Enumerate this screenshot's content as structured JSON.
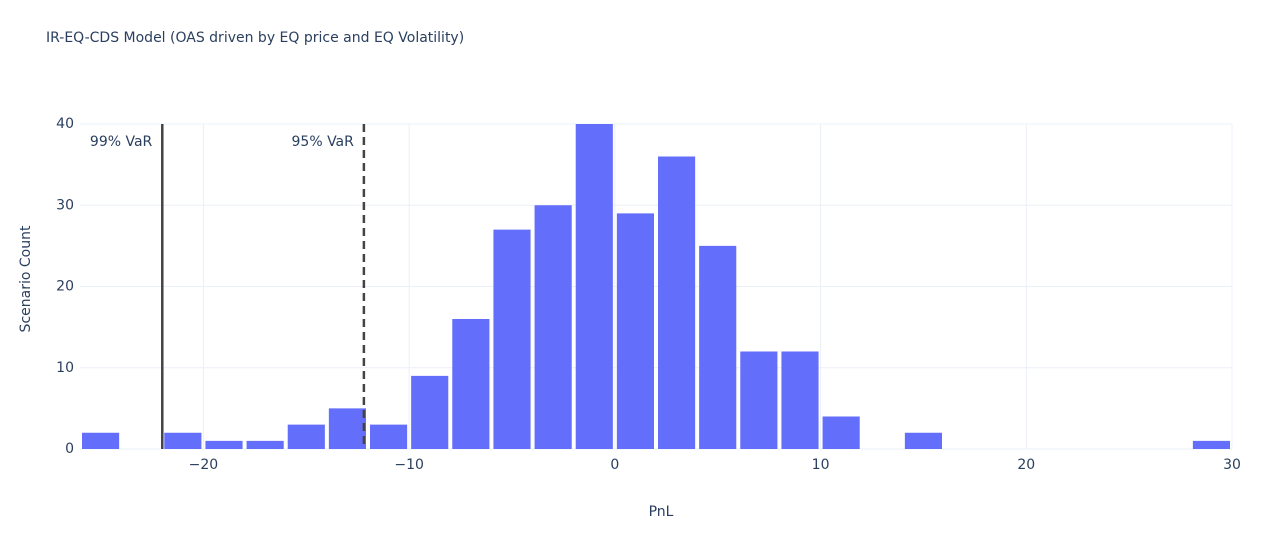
{
  "chart_data": {
    "type": "histogram",
    "title": "IR-EQ-CDS Model (OAS driven by EQ price and EQ Volatility)",
    "x_label": "PnL",
    "y_label": "Scenario Count",
    "bins": [
      -26,
      -24,
      -22,
      -20,
      -18,
      -16,
      -14,
      -12,
      -10,
      -8,
      -6,
      -4,
      -2,
      0,
      2,
      4,
      6,
      8,
      10,
      12,
      14,
      16,
      18,
      20,
      22,
      24,
      26,
      28,
      30
    ],
    "values": [
      2,
      0,
      2,
      1,
      1,
      3,
      5,
      3,
      9,
      16,
      27,
      30,
      40,
      29,
      36,
      25,
      12,
      12,
      4,
      0,
      2,
      0,
      0,
      0,
      0,
      0,
      0,
      1
    ],
    "color": "#636efa",
    "xlim": [
      -26,
      30
    ],
    "ylim": [
      0,
      40
    ],
    "xticks": [
      {
        "value": -20,
        "label": "−20"
      },
      {
        "value": -10,
        "label": "−10"
      },
      0,
      10,
      20,
      30
    ],
    "yticks": [
      0,
      10,
      20,
      30,
      40
    ],
    "grid": true,
    "vlines": [
      {
        "value": -22,
        "label": "99% VaR",
        "dash": false
      },
      {
        "value": -12.2,
        "label": "95% VaR",
        "dash": true
      }
    ]
  }
}
